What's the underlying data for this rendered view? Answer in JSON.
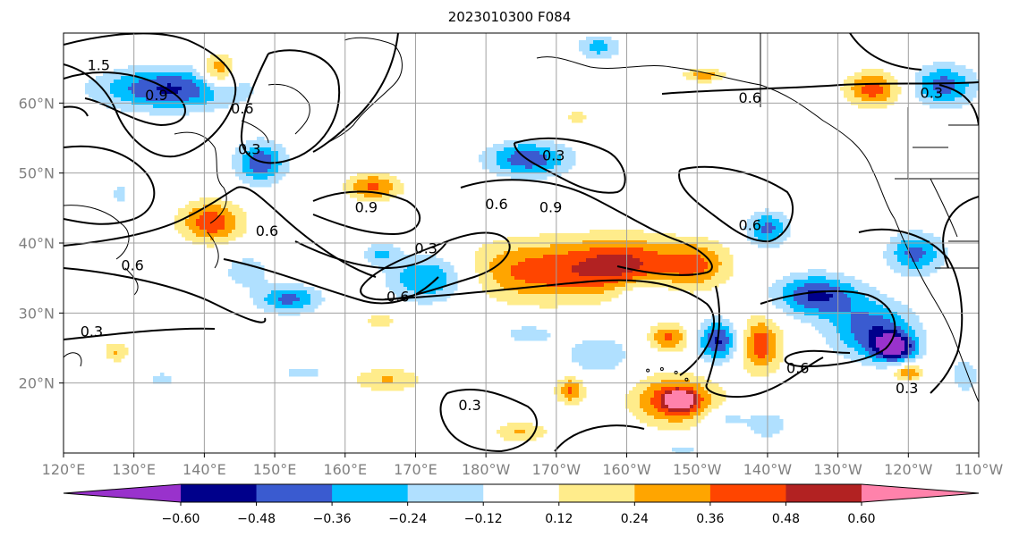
{
  "title": "2023010300 F084",
  "map": {
    "projection": "equirectangular",
    "lon_range": [
      120,
      250
    ],
    "lat_range": [
      10,
      70
    ],
    "grid": true,
    "lon_labels": [
      "120°E",
      "130°E",
      "140°E",
      "150°E",
      "160°E",
      "170°E",
      "180°W",
      "170°W",
      "160°W",
      "150°W",
      "140°W",
      "130°W",
      "120°W",
      "110°W"
    ],
    "lat_labels": [
      "20°N",
      "30°N",
      "40°N",
      "50°N",
      "60°N"
    ]
  },
  "contour_labels": [
    {
      "text": "1.5",
      "lon": 125,
      "lat": 65.5
    },
    {
      "text": "0.9",
      "lon": 133.2,
      "lat": 61.2
    },
    {
      "text": "0.6",
      "lon": 145.4,
      "lat": 59.3
    },
    {
      "text": "0.3",
      "lon": 146.4,
      "lat": 53.5
    },
    {
      "text": "0.6",
      "lon": 148.9,
      "lat": 41.8
    },
    {
      "text": "0.6",
      "lon": 129.8,
      "lat": 36.9
    },
    {
      "text": "0.3",
      "lon": 124,
      "lat": 27.4
    },
    {
      "text": "0.9",
      "lon": 163,
      "lat": 45.2
    },
    {
      "text": "0.3",
      "lon": 171.5,
      "lat": 39.3
    },
    {
      "text": "0.6",
      "lon": 167.5,
      "lat": 32.4
    },
    {
      "text": "0.6",
      "lon": 181.5,
      "lat": 45.6
    },
    {
      "text": "0.9",
      "lon": 189.2,
      "lat": 45.2
    },
    {
      "text": "0.3",
      "lon": 189.6,
      "lat": 52.6
    },
    {
      "text": "0.6",
      "lon": 217.5,
      "lat": 60.8
    },
    {
      "text": "0.6",
      "lon": 217.5,
      "lat": 42.6
    },
    {
      "text": "0.6",
      "lon": 224.3,
      "lat": 22.2
    },
    {
      "text": "0.3",
      "lon": 243.3,
      "lat": 61.5
    },
    {
      "text": "0.3",
      "lon": 239.8,
      "lat": 19.3
    },
    {
      "text": "0.3",
      "lon": 177.7,
      "lat": 16.9
    }
  ],
  "colorbar": {
    "ticks": [
      "−0.60",
      "−0.48",
      "−0.36",
      "−0.24",
      "−0.12",
      "0.12",
      "0.24",
      "0.36",
      "0.48",
      "0.60"
    ],
    "colors": [
      "#9932cc",
      "#00008b",
      "#3a5bd0",
      "#00bfff",
      "#b0e0ff",
      "#ffffff",
      "#ffec8b",
      "#ffa500",
      "#ff4500",
      "#b22222",
      "#ff82ab"
    ]
  },
  "shading": {
    "levels": [
      -0.6,
      -0.48,
      -0.36,
      -0.24,
      -0.12,
      0.12,
      0.24,
      0.36,
      0.48,
      0.6
    ],
    "blobs": [
      {
        "lon": 135,
        "lat": 62,
        "dlon": 10,
        "dlat": 3,
        "value": -0.5
      },
      {
        "lon": 142,
        "lat": 64.5,
        "dlon": 2.5,
        "dlat": 2.5,
        "value": 0.4
      },
      {
        "lon": 148,
        "lat": 51.5,
        "dlon": 3.5,
        "dlat": 3,
        "value": -0.45
      },
      {
        "lon": 141,
        "lat": 43,
        "dlon": 4.5,
        "dlat": 3,
        "value": 0.45
      },
      {
        "lon": 146,
        "lat": 36,
        "dlon": 3.5,
        "dlat": 2.5,
        "value": -0.2
      },
      {
        "lon": 152,
        "lat": 32,
        "dlon": 4.5,
        "dlat": 2,
        "value": -0.4
      },
      {
        "lon": 164,
        "lat": 48,
        "dlon": 4,
        "dlat": 2,
        "value": 0.38
      },
      {
        "lon": 165,
        "lat": 38.5,
        "dlon": 2.5,
        "dlat": 1.5,
        "value": -0.25
      },
      {
        "lon": 172,
        "lat": 35,
        "dlon": 6,
        "dlat": 3.5,
        "value": -0.42
      },
      {
        "lon": 166,
        "lat": 20.5,
        "dlon": 5,
        "dlat": 1.8,
        "value": 0.25
      },
      {
        "lon": 186,
        "lat": 52,
        "dlon": 6,
        "dlat": 2.5,
        "value": -0.45
      },
      {
        "lon": 188,
        "lat": 36,
        "dlon": 12,
        "dlat": 4.5,
        "value": 0.42
      },
      {
        "lon": 200,
        "lat": 37,
        "dlon": 7,
        "dlat": 4,
        "value": 0.4
      },
      {
        "lon": 210,
        "lat": 37,
        "dlon": 5,
        "dlat": 3.5,
        "value": 0.35
      },
      {
        "lon": 202,
        "lat": 33,
        "dlon": 4,
        "dlat": 2.5,
        "value": -0.2
      },
      {
        "lon": 196,
        "lat": 24,
        "dlon": 5,
        "dlat": 3,
        "value": -0.22
      },
      {
        "lon": 206,
        "lat": 26.5,
        "dlon": 3,
        "dlat": 2,
        "value": 0.38
      },
      {
        "lon": 207,
        "lat": 17.5,
        "dlon": 6,
        "dlat": 3.5,
        "value": 0.5
      },
      {
        "lon": 207.5,
        "lat": 17.5,
        "dlon": 1.8,
        "dlat": 1.2,
        "value": 0.65
      },
      {
        "lon": 213,
        "lat": 26,
        "dlon": 3,
        "dlat": 3,
        "value": -0.5
      },
      {
        "lon": 219,
        "lat": 25.5,
        "dlon": 3,
        "dlat": 4,
        "value": 0.45
      },
      {
        "lon": 220,
        "lat": 42,
        "dlon": 3,
        "dlat": 2.5,
        "value": -0.4
      },
      {
        "lon": 227,
        "lat": 32.5,
        "dlon": 6,
        "dlat": 3,
        "value": -0.5
      },
      {
        "lon": 235,
        "lat": 27.5,
        "dlon": 6,
        "dlat": 4,
        "value": -0.45
      },
      {
        "lon": 238,
        "lat": 25,
        "dlon": 3,
        "dlat": 2,
        "value": -0.58
      },
      {
        "lon": 241,
        "lat": 38.5,
        "dlon": 4,
        "dlat": 3,
        "value": -0.4
      },
      {
        "lon": 235,
        "lat": 62,
        "dlon": 4,
        "dlat": 2.5,
        "value": 0.42
      },
      {
        "lon": 245,
        "lat": 62.5,
        "dlon": 4.5,
        "dlat": 3,
        "value": -0.42
      },
      {
        "lon": 185,
        "lat": 13,
        "dlon": 4,
        "dlat": 1.5,
        "value": 0.25
      },
      {
        "lon": 208,
        "lat": 10.5,
        "dlon": 4,
        "dlat": 1.5,
        "value": -0.15
      },
      {
        "lon": 214,
        "lat": 15,
        "dlon": 3,
        "dlat": 1.5,
        "value": -0.2
      },
      {
        "lon": 220,
        "lat": 14,
        "dlon": 3,
        "dlat": 2,
        "value": -0.22
      },
      {
        "lon": 240,
        "lat": 21.5,
        "dlon": 2,
        "dlat": 1.2,
        "value": 0.4
      },
      {
        "lon": 248,
        "lat": 21,
        "dlon": 2,
        "dlat": 2.5,
        "value": -0.22
      },
      {
        "lon": 192,
        "lat": 19,
        "dlon": 2,
        "dlat": 2,
        "value": 0.38
      },
      {
        "lon": 134,
        "lat": 20.5,
        "dlon": 1.5,
        "dlat": 1,
        "value": -0.22
      },
      {
        "lon": 127.5,
        "lat": 24.5,
        "dlon": 1.8,
        "dlat": 1.5,
        "value": 0.25
      },
      {
        "lon": 128,
        "lat": 47,
        "dlon": 1,
        "dlat": 1.5,
        "value": -0.2
      },
      {
        "lon": 196,
        "lat": 68,
        "dlon": 3,
        "dlat": 1.8,
        "value": -0.3
      },
      {
        "lon": 193,
        "lat": 58,
        "dlon": 1.5,
        "dlat": 0.8,
        "value": 0.24
      },
      {
        "lon": 211,
        "lat": 64,
        "dlon": 3,
        "dlat": 1,
        "value": 0.3
      },
      {
        "lon": 186,
        "lat": 27,
        "dlon": 4,
        "dlat": 1.5,
        "value": -0.2
      },
      {
        "lon": 165,
        "lat": 29,
        "dlon": 2,
        "dlat": 1,
        "value": 0.24
      },
      {
        "lon": 154,
        "lat": 21.5,
        "dlon": 3,
        "dlat": 1,
        "value": -0.2
      }
    ]
  }
}
